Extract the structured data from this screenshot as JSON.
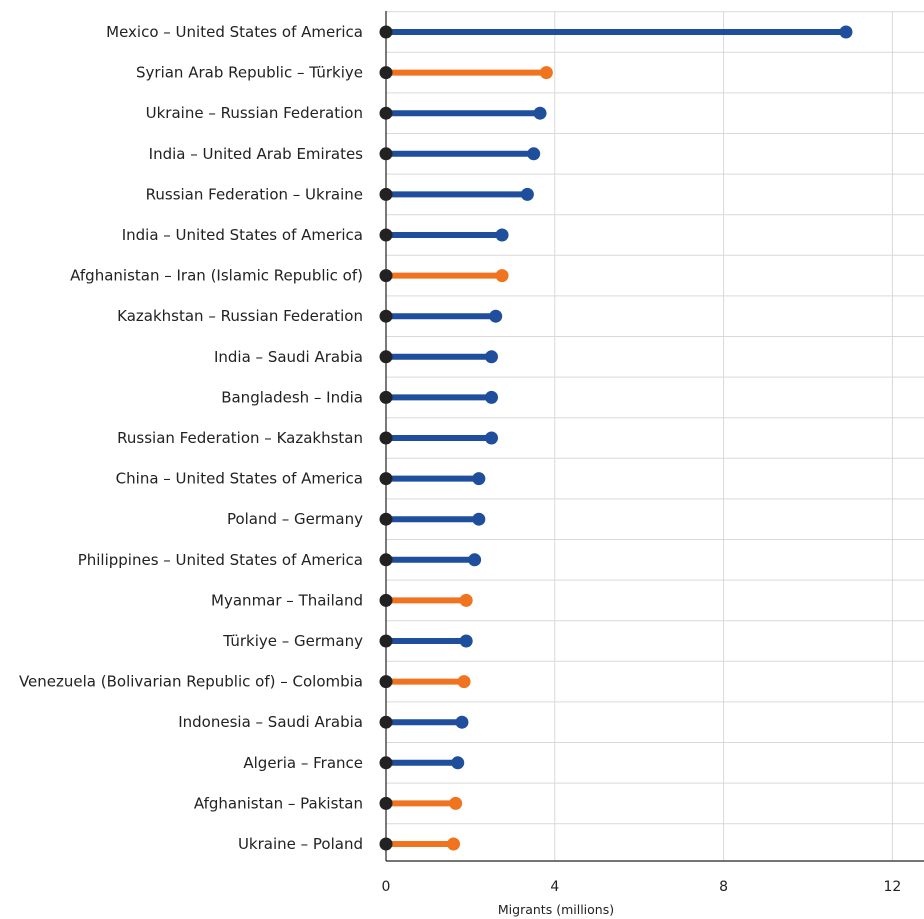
{
  "chart_data": {
    "type": "bar",
    "orientation": "horizontal",
    "style": "lollipop",
    "xlabel": "Migrants (millions)",
    "xlim": [
      0,
      12.8
    ],
    "xticks": [
      0,
      4,
      8,
      12
    ],
    "grid": true,
    "colors": {
      "default": "#1f4e9c",
      "highlight": "#f07320",
      "origin_dot": "#222222"
    },
    "categories": [
      "Mexico – United States of America",
      "Syrian Arab Republic – Türkiye",
      "Ukraine – Russian Federation",
      "India – United Arab Emirates",
      "Russian Federation – Ukraine",
      "India – United States of America",
      "Afghanistan – Iran (Islamic Republic of)",
      "Kazakhstan – Russian Federation",
      "India – Saudi Arabia",
      "Bangladesh – India",
      "Russian Federation – Kazakhstan",
      "China – United States of America",
      "Poland – Germany",
      "Philippines – United States of America",
      "Myanmar – Thailand",
      "Türkiye – Germany",
      "Venezuela (Bolivarian Republic of) – Colombia",
      "Indonesia – Saudi Arabia",
      "Algeria – France",
      "Afghanistan – Pakistan",
      "Ukraine – Poland"
    ],
    "values": [
      10.9,
      3.8,
      3.65,
      3.5,
      3.35,
      2.75,
      2.75,
      2.6,
      2.5,
      2.5,
      2.5,
      2.2,
      2.2,
      2.1,
      1.9,
      1.9,
      1.85,
      1.8,
      1.7,
      1.65,
      1.6
    ],
    "highlight": [
      false,
      true,
      false,
      false,
      false,
      false,
      true,
      false,
      false,
      false,
      false,
      false,
      false,
      false,
      true,
      false,
      true,
      false,
      false,
      true,
      true
    ]
  }
}
